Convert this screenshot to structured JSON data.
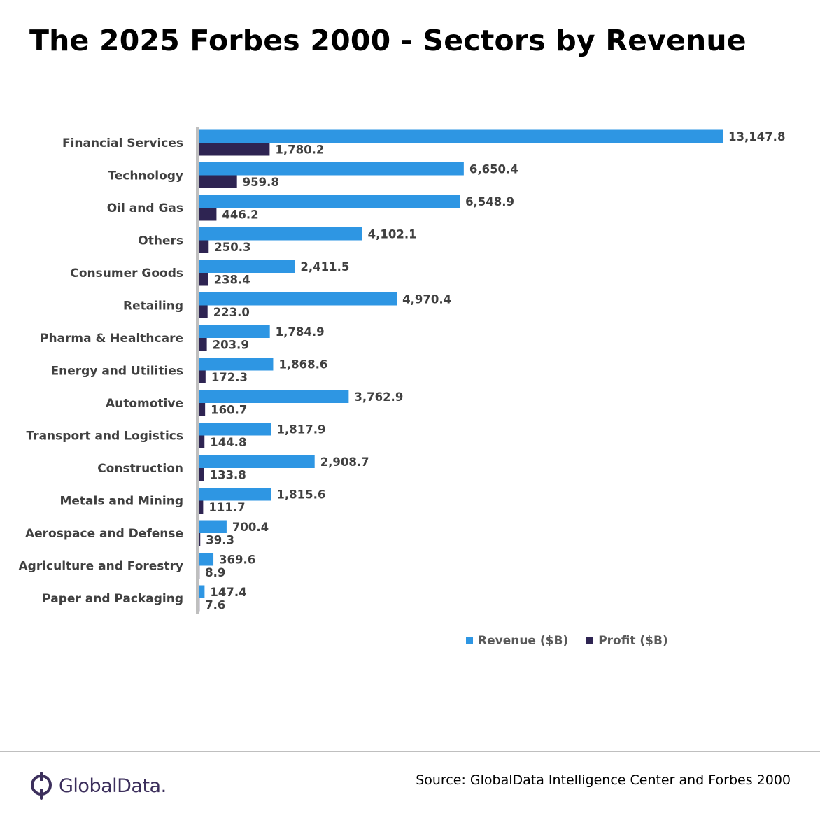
{
  "title": "The 2025 Forbes 2000 - Sectors by Revenue",
  "colors": {
    "revenue": "#2e96e3",
    "profit": "#2e2452",
    "axis": "#bfbfbf",
    "logo": "#3c2f5c"
  },
  "chart_data": {
    "type": "bar",
    "orientation": "horizontal",
    "title": "The 2025 Forbes 2000 - Sectors by Revenue",
    "categories": [
      "Financial Services",
      "Technology",
      "Oil and Gas",
      "Others",
      "Consumer Goods",
      "Retailing",
      "Pharma & Healthcare",
      "Energy and Utilities",
      "Automotive",
      "Transport and Logistics",
      "Construction",
      "Metals and Mining",
      "Aerospace and Defense",
      "Agriculture and Forestry",
      "Paper and Packaging"
    ],
    "series": [
      {
        "name": "Revenue ($B)",
        "values": [
          13147.8,
          6650.4,
          6548.9,
          4102.1,
          2411.5,
          4970.4,
          1784.9,
          1868.6,
          3762.9,
          1817.9,
          2908.7,
          1815.6,
          700.4,
          369.6,
          147.4
        ]
      },
      {
        "name": "Profit ($B)",
        "values": [
          1780.2,
          959.8,
          446.2,
          250.3,
          238.4,
          223.0,
          203.9,
          172.3,
          160.7,
          144.8,
          133.8,
          111.7,
          39.3,
          8.9,
          7.6
        ]
      }
    ],
    "xlim": [
      0,
      13147.8
    ],
    "legend": "bottom",
    "grid": false
  },
  "legend": {
    "revenue_label": "Revenue ($B)",
    "profit_label": "Profit ($B)"
  },
  "footer": {
    "logo_text": "GlobalData.",
    "source": "Source: GlobalData Intelligence Center and Forbes 2000"
  }
}
